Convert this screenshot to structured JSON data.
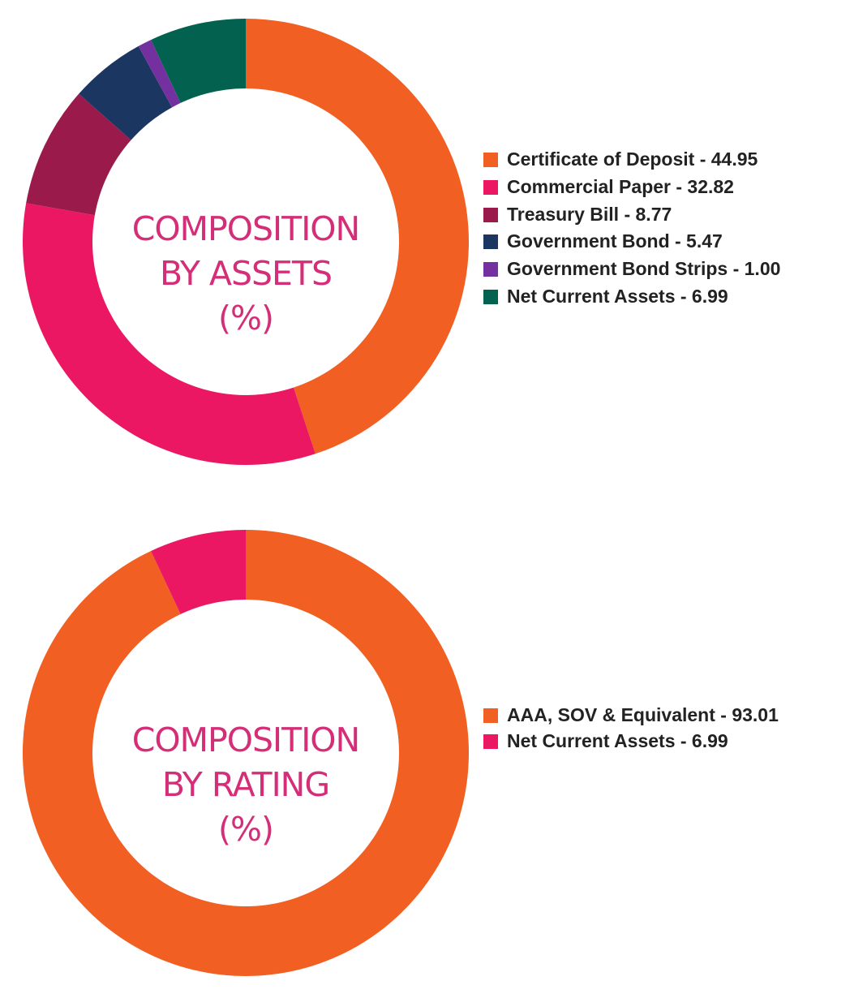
{
  "chart_data": [
    {
      "type": "pie",
      "center_label": [
        "COMPOSITION",
        "BY ASSETS",
        "(%)"
      ],
      "legend_position": "right",
      "slices": [
        {
          "label": "Certificate of Deposit - 44.95",
          "value": 44.95,
          "color": "#f15f22"
        },
        {
          "label": "Commercial Paper - 32.82",
          "value": 32.82,
          "color": "#eb1763"
        },
        {
          "label": "Treasury Bill - 8.77",
          "value": 8.77,
          "color": "#9a1b4b"
        },
        {
          "label": "Government Bond - 5.47",
          "value": 5.47,
          "color": "#1b3661"
        },
        {
          "label": "Government Bond Strips - 1.00",
          "value": 1.0,
          "color": "#7530a0"
        },
        {
          "label": "Net Current Assets - 6.99",
          "value": 6.99,
          "color": "#02624f"
        }
      ]
    },
    {
      "type": "pie",
      "center_label": [
        "COMPOSITION",
        "BY RATING",
        "(%)"
      ],
      "legend_position": "right",
      "slices": [
        {
          "label": "AAA, SOV & Equivalent - 93.01",
          "value": 93.01,
          "color": "#f15f22"
        },
        {
          "label": "Net Current Assets - 6.99",
          "value": 6.99,
          "color": "#eb1763"
        }
      ]
    }
  ]
}
